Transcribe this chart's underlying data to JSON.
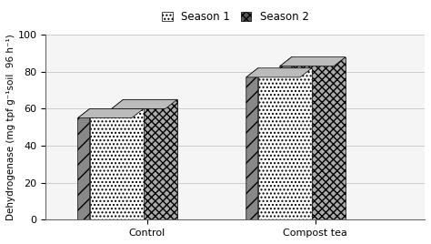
{
  "categories": [
    "Control",
    "Compost tea"
  ],
  "season1_values": [
    60,
    82
  ],
  "season2_values": [
    65,
    88
  ],
  "ylabel": "Dehydrogenase (mg tpf g⁻¹soil  96 h⁻¹)",
  "ylim": [
    0,
    100
  ],
  "yticks": [
    0,
    20,
    40,
    60,
    80,
    100
  ],
  "legend_labels": [
    "Season 1",
    "Season 2"
  ],
  "bar_width": 0.32,
  "background_color": "#f5f5f5",
  "figure_color": "#ffffff",
  "axis_fontsize": 7.5,
  "tick_fontsize": 8,
  "legend_fontsize": 8.5
}
